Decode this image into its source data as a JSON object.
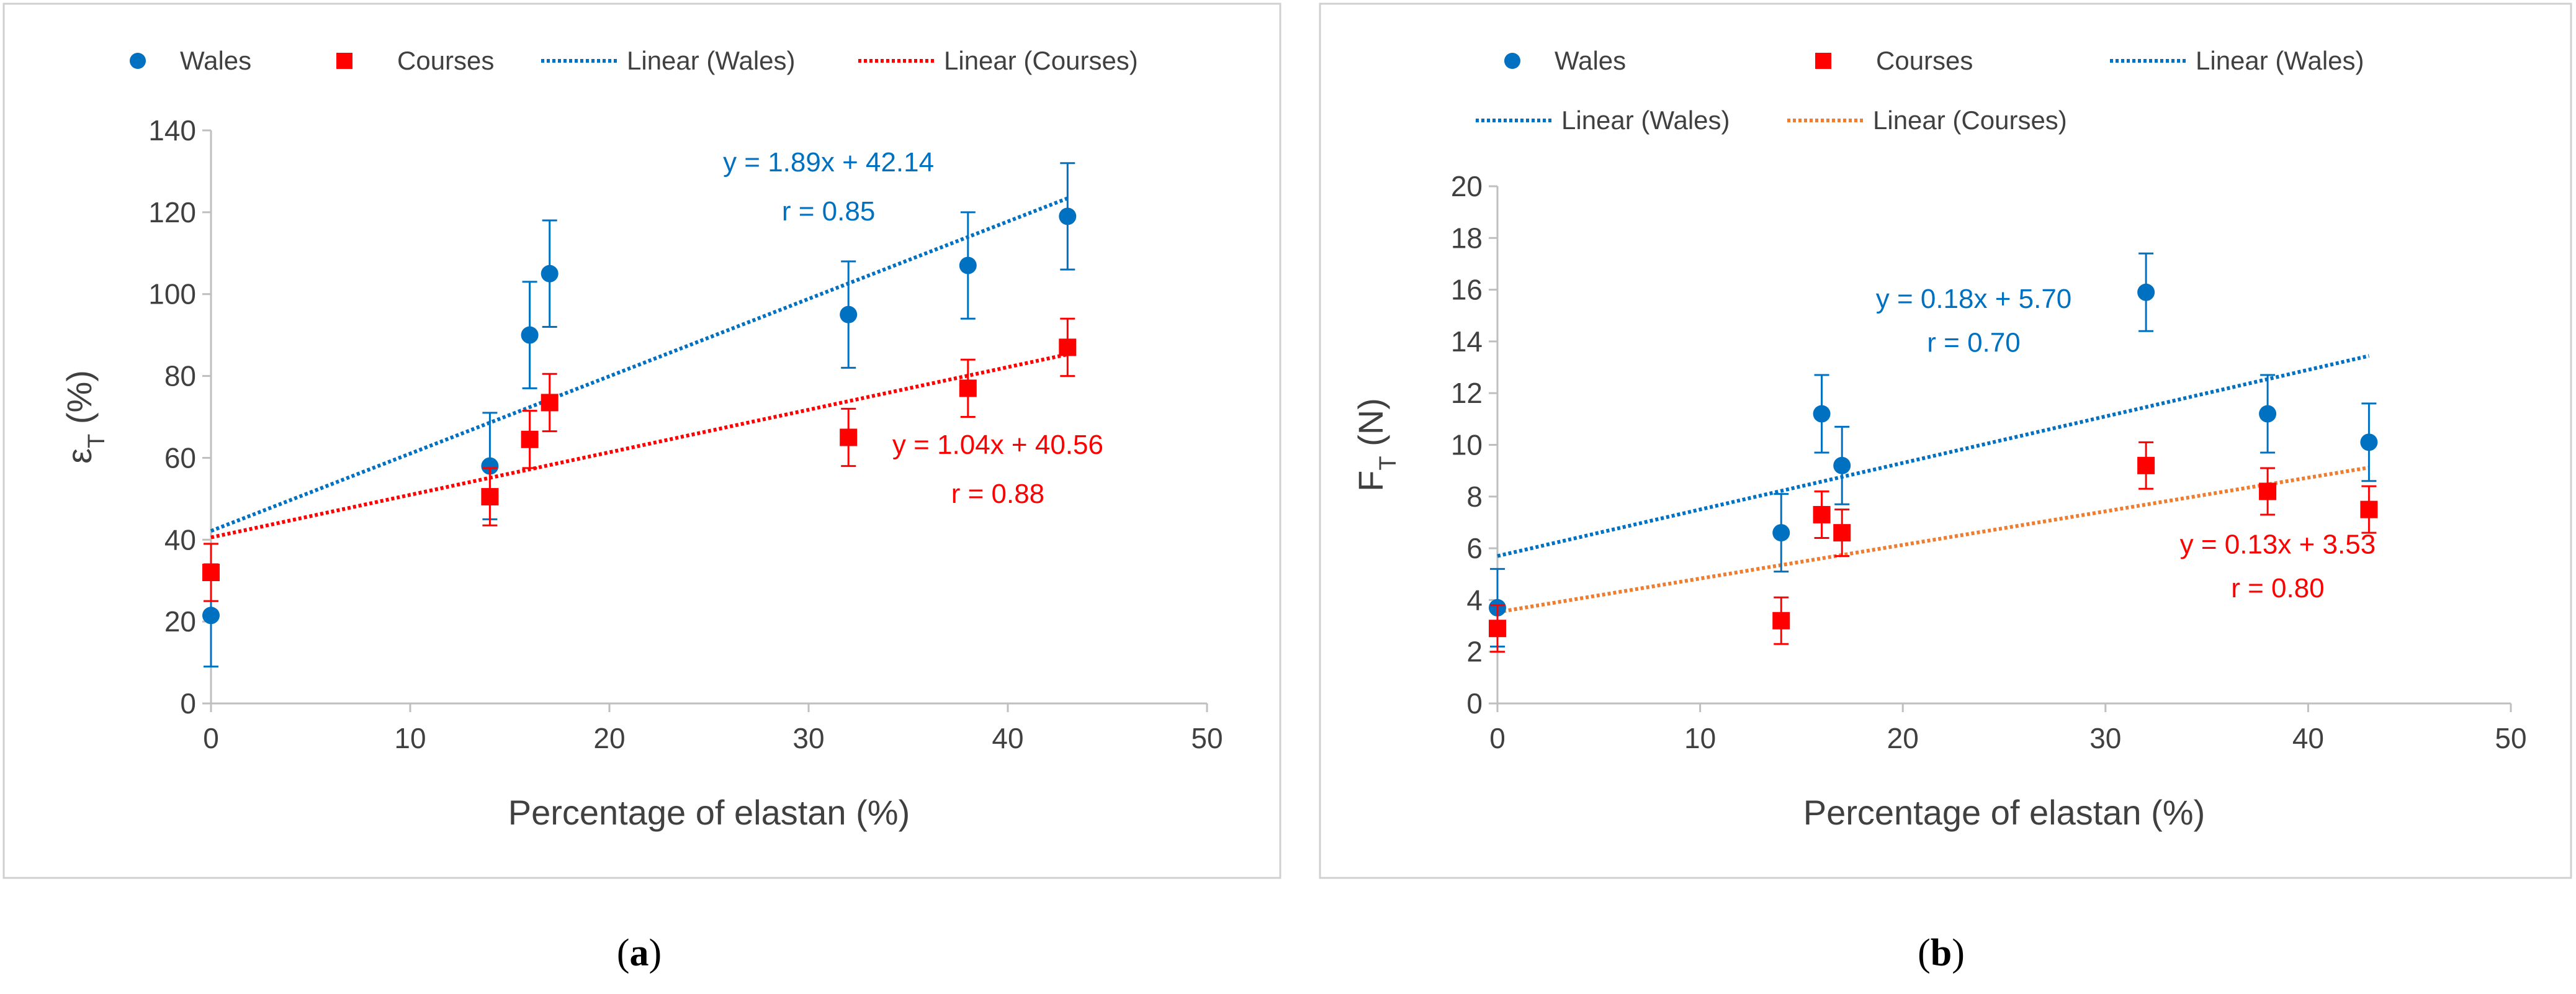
{
  "chart_data": [
    {
      "id": "a",
      "type": "scatter",
      "caption_prefix": "(",
      "caption_letter": "a",
      "caption_suffix": ")",
      "xlabel": "Percentage of elastan (%)",
      "ylabel_main": "ε",
      "ylabel_sub": "T",
      "ylabel_unit": " (%)",
      "xlim": [
        0,
        50
      ],
      "ylim": [
        0,
        140
      ],
      "xticks": [
        0,
        10,
        20,
        30,
        40,
        50
      ],
      "yticks": [
        0,
        20,
        40,
        60,
        80,
        100,
        120,
        140
      ],
      "legend": [
        {
          "label": "Wales",
          "kind": "marker-circle",
          "color": "#0070C0"
        },
        {
          "label": "Courses",
          "kind": "marker-square",
          "color": "#FF0000"
        },
        {
          "label": "Linear (Wales)",
          "kind": "dotted-line",
          "color": "#0070C0"
        },
        {
          "label": "Linear (Courses)",
          "kind": "dotted-line",
          "color": "#FF0000"
        }
      ],
      "series": [
        {
          "name": "Wales",
          "marker": "circle",
          "color": "#0070C0",
          "x": [
            0,
            14,
            16,
            17,
            32,
            38,
            43
          ],
          "y": [
            21.5,
            58,
            90,
            105,
            95,
            107,
            119
          ],
          "err": [
            12.5,
            13,
            13,
            13,
            13,
            13,
            13
          ]
        },
        {
          "name": "Courses",
          "marker": "square",
          "color": "#FF0000",
          "x": [
            0,
            14,
            16,
            17,
            32,
            38,
            43
          ],
          "y": [
            32,
            50.5,
            64.5,
            73.5,
            65,
            77,
            87
          ],
          "err": [
            7,
            7,
            7,
            7,
            7,
            7,
            7
          ]
        }
      ],
      "trendlines": [
        {
          "name": "Linear (Wales)",
          "color": "#0070C0",
          "slope": 1.89,
          "intercept": 42.14,
          "x_range": [
            0,
            43
          ]
        },
        {
          "name": "Linear (Courses)",
          "color": "#FF0000",
          "slope": 1.04,
          "intercept": 40.56,
          "x_range": [
            0,
            43
          ]
        }
      ],
      "annotations": [
        {
          "text": "y = 1.89x + 42.14",
          "color": "#0070C0",
          "x": 31,
          "y": 130
        },
        {
          "text": "r = 0.85",
          "color": "#0070C0",
          "x": 31,
          "y": 118
        },
        {
          "text": "y = 1.04x + 40.56",
          "color": "#FF0000",
          "x": 39.5,
          "y": 61
        },
        {
          "text": "r = 0.88",
          "color": "#FF0000",
          "x": 39.5,
          "y": 49
        }
      ]
    },
    {
      "id": "b",
      "type": "scatter",
      "caption_prefix": "(",
      "caption_letter": "b",
      "caption_suffix": ")",
      "xlabel": "Percentage of elastan (%)",
      "ylabel_main": "F",
      "ylabel_sub": "T",
      "ylabel_unit": " (N)",
      "xlim": [
        0,
        50
      ],
      "ylim": [
        0,
        20
      ],
      "xticks": [
        0,
        10,
        20,
        30,
        40,
        50
      ],
      "yticks": [
        0,
        2,
        4,
        6,
        8,
        10,
        12,
        14,
        16,
        18,
        20
      ],
      "legend": [
        {
          "label": "Wales",
          "kind": "marker-circle",
          "color": "#0070C0"
        },
        {
          "label": "Courses",
          "kind": "marker-square",
          "color": "#FF0000"
        },
        {
          "label": "Linear (Wales)",
          "kind": "dotted-line",
          "color": "#0070C0"
        },
        {
          "label": "Linear (Wales)",
          "kind": "dotted-line",
          "color": "#0070C0"
        },
        {
          "label": "Linear (Courses)",
          "kind": "dotted-line",
          "color": "#ED7D31"
        }
      ],
      "series": [
        {
          "name": "Wales",
          "marker": "circle",
          "color": "#0070C0",
          "x": [
            0,
            14,
            16,
            17,
            32,
            38,
            43
          ],
          "y": [
            3.7,
            6.6,
            11.2,
            9.2,
            15.9,
            11.2,
            10.1
          ],
          "err": [
            1.5,
            1.5,
            1.5,
            1.5,
            1.5,
            1.5,
            1.5
          ]
        },
        {
          "name": "Courses",
          "marker": "square",
          "color": "#FF0000",
          "x": [
            0,
            14,
            16,
            17,
            32,
            38,
            43
          ],
          "y": [
            2.9,
            3.2,
            7.3,
            6.6,
            9.2,
            8.2,
            7.5
          ],
          "err": [
            0.9,
            0.9,
            0.9,
            0.9,
            0.9,
            0.9,
            0.9
          ]
        }
      ],
      "trendlines": [
        {
          "name": "Linear (Wales)",
          "color": "#0070C0",
          "slope": 0.18,
          "intercept": 5.7,
          "x_range": [
            0,
            43
          ]
        },
        {
          "name": "Linear (Courses)",
          "color": "#ED7D31",
          "slope": 0.13,
          "intercept": 3.53,
          "x_range": [
            0,
            43
          ]
        }
      ],
      "annotations": [
        {
          "text": "y = 0.18x + 5.70",
          "color": "#0070C0",
          "x": 23.5,
          "y": 15.3
        },
        {
          "text": "r = 0.70",
          "color": "#0070C0",
          "x": 23.5,
          "y": 13.6
        },
        {
          "text": "y = 0.13x + 3.53",
          "color": "#FF0000",
          "x": 38.5,
          "y": 5.8
        },
        {
          "text": "r = 0.80",
          "color": "#FF0000",
          "x": 38.5,
          "y": 4.1
        }
      ]
    }
  ]
}
